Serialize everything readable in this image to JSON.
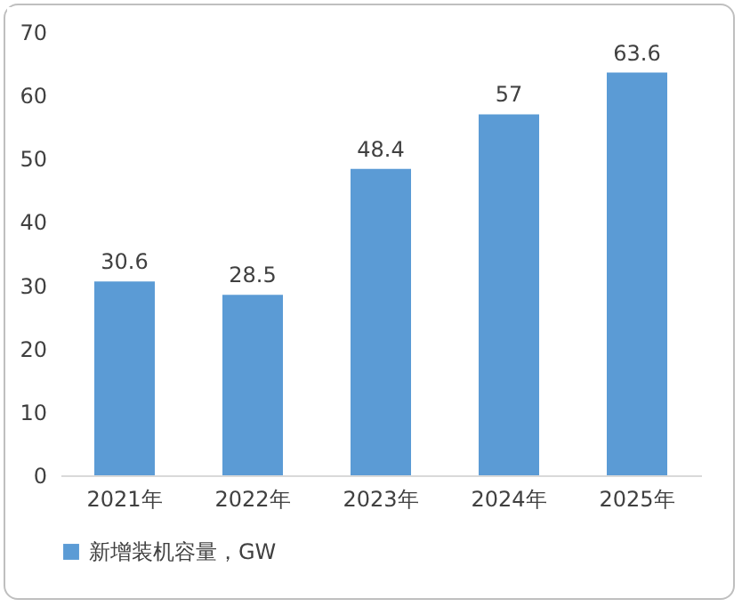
{
  "chart_data": {
    "type": "bar",
    "categories": [
      "2021年",
      "2022年",
      "2023年",
      "2024年",
      "2025年"
    ],
    "series": [
      {
        "name": "新增装机容量，GW",
        "color": "#5b9bd5",
        "values": [
          30.6,
          28.5,
          48.4,
          57,
          63.6
        ]
      }
    ],
    "ylim": [
      0,
      70
    ],
    "yticks": [
      0,
      10,
      20,
      30,
      40,
      50,
      60,
      70
    ],
    "data_labels": true,
    "legend": "bottom",
    "grid": false
  }
}
